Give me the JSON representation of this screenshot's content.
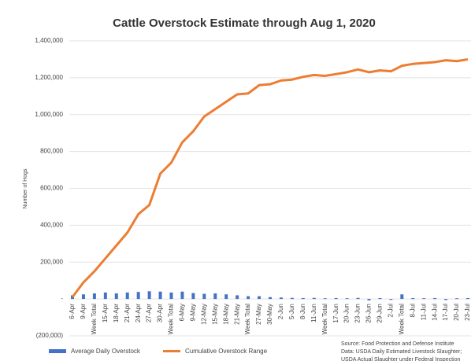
{
  "chart_data": {
    "type": "bar_line",
    "title": "Cattle Overstock Estimate through Aug 1, 2020",
    "y_label": "Number of Hogs",
    "categories": [
      "6-Apr",
      "9-Apr",
      "Week Total",
      "15-Apr",
      "18-Apr",
      "21-Apr",
      "24-Apr",
      "27-Apr",
      "30-Apr",
      "Week Total",
      "6-May",
      "9-May",
      "12-May",
      "15-May",
      "18-May",
      "21-May",
      "Week Total",
      "27-May",
      "30-May",
      "2-Jun",
      "5-Jun",
      "8-Jun",
      "11-Jun",
      "Week Total",
      "17-Jun",
      "20-Jun",
      "23-Jun",
      "26-Jun",
      "29-Jun",
      "2-Jul",
      "Week Total",
      "8-Jul",
      "11-Jul",
      "14-Jul",
      "17-Jul",
      "20-Jul",
      "23-Jul"
    ],
    "series": [
      {
        "name": "Average Daily Overstock",
        "color": "#4472c4",
        "kind": "bar",
        "values": [
          20000,
          25000,
          30000,
          35000,
          30000,
          35000,
          38000,
          42000,
          40000,
          35000,
          40000,
          32000,
          28000,
          30000,
          25000,
          20000,
          15000,
          15000,
          10000,
          8000,
          6000,
          5000,
          6000,
          4000,
          5000,
          4000,
          6000,
          -8000,
          5000,
          -5000,
          25000,
          5000,
          4000,
          5000,
          -6000,
          4000,
          5000
        ]
      },
      {
        "name": "Cumulative Overstock Range",
        "color": "#ed7d31",
        "kind": "line",
        "values": [
          10000,
          90000,
          150000,
          220000,
          290000,
          360000,
          460000,
          510000,
          680000,
          740000,
          850000,
          910000,
          990000,
          1030000,
          1070000,
          1110000,
          1115000,
          1160000,
          1165000,
          1185000,
          1190000,
          1205000,
          1215000,
          1210000,
          1220000,
          1230000,
          1245000,
          1230000,
          1240000,
          1235000,
          1265000,
          1275000,
          1280000,
          1285000,
          1295000,
          1290000,
          1300000
        ]
      }
    ],
    "ylim": [
      -200000,
      1400000
    ],
    "yticks": [
      {
        "value": -200000,
        "label": "(200,000)"
      },
      {
        "value": 0,
        "label": "-"
      },
      {
        "value": 200000,
        "label": "200,000"
      },
      {
        "value": 400000,
        "label": "400,000"
      },
      {
        "value": 600000,
        "label": "600,000"
      },
      {
        "value": 800000,
        "label": "800,000"
      },
      {
        "value": 1000000,
        "label": "1,000,000"
      },
      {
        "value": 1200000,
        "label": "1,200,000"
      },
      {
        "value": 1400000,
        "label": "1,400,000"
      }
    ],
    "grid": true,
    "legend": "bottom-left",
    "annotations": [
      "Source: Food Protection and Defense Institute",
      "Data: USDA Daily Estimated Livestock Slaughter;",
      "USDA Actual Slaughter under Federal Inspection"
    ]
  }
}
